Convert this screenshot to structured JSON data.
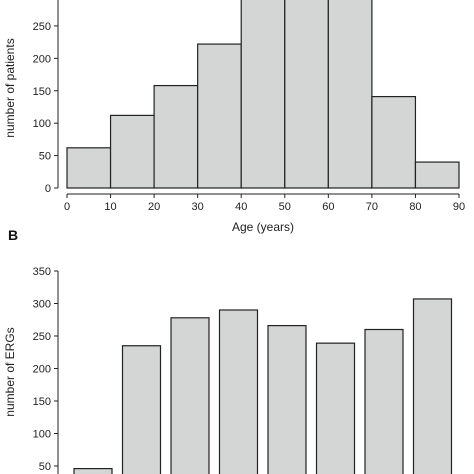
{
  "chart_data": [
    {
      "type": "bar",
      "subtype": "histogram",
      "panel": "",
      "bin_edges": [
        0,
        10,
        20,
        30,
        40,
        50,
        60,
        70,
        80,
        90
      ],
      "values": [
        62,
        112,
        158,
        222,
        300,
        300,
        300,
        141,
        40
      ],
      "xlabel": "Age (years)",
      "ylabel": "number of patients",
      "xticks": [
        "0",
        "10",
        "20",
        "30",
        "40",
        "50",
        "60",
        "70",
        "80",
        "90"
      ],
      "yticks": [
        "0",
        "50",
        "100",
        "150",
        "200",
        "250"
      ],
      "xlim": [
        0,
        90
      ],
      "ylim": [
        0,
        290
      ],
      "bar_color": "#d4d6d5",
      "edge_color": "#222222"
    },
    {
      "type": "bar",
      "panel": "B",
      "categories": [
        "",
        "",
        "",
        "",
        "",
        "",
        "",
        ""
      ],
      "values": [
        46,
        235,
        278,
        290,
        266,
        239,
        260,
        307
      ],
      "xlabel": "",
      "ylabel": "number of ERGs",
      "yticks": [
        "50",
        "100",
        "150",
        "200",
        "250",
        "300",
        "350"
      ],
      "ylim": [
        42,
        350
      ],
      "bar_color": "#d4d6d5",
      "edge_color": "#222222"
    }
  ]
}
